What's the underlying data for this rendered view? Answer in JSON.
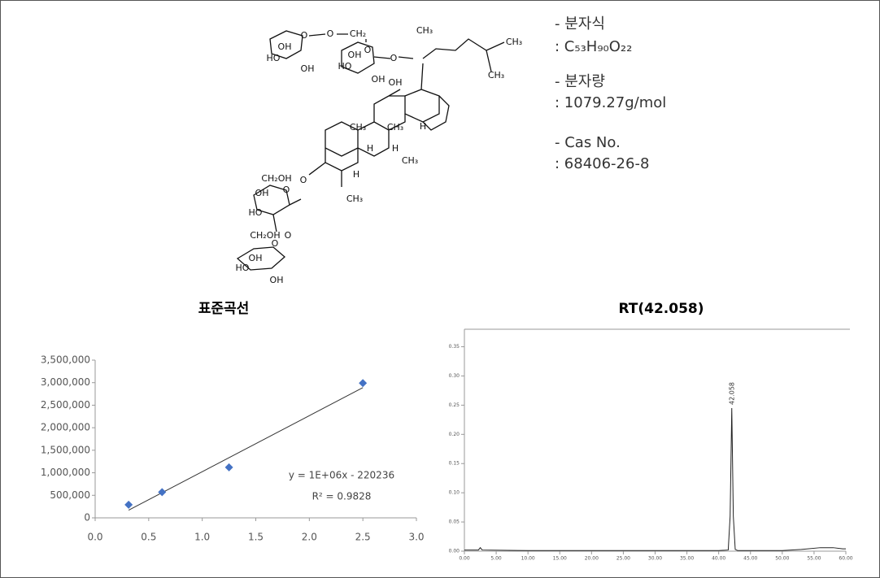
{
  "structure": {
    "labels": [
      "O",
      "O",
      "CH₂",
      "OH",
      "HO",
      "OH",
      "O",
      "OH",
      "HO",
      "OH",
      "O",
      "OH",
      "CH₃",
      "CH₃",
      "CH₃",
      "CH₃",
      "H",
      "CH₃",
      "H",
      "H",
      "CH₃",
      "H",
      "CH₃",
      "O",
      "CH₂OH",
      "O",
      "OH",
      "HO",
      "O",
      "CH₂OH",
      "O",
      "OH",
      "HO",
      "OH"
    ]
  },
  "info": {
    "formula_label": "-   분자식",
    "formula": ": C₅₃H₉₀O₂₂",
    "weight_label": "-   분자량",
    "weight": ": 1079.27g/mol",
    "cas_label": "-   Cas No.",
    "cas": ": 68406-26-8"
  },
  "chart_data": [
    {
      "type": "scatter",
      "title": "표준곡선",
      "color": "#4472c4",
      "x": [
        0.3125,
        0.625,
        1.25,
        2.5
      ],
      "values": [
        290000,
        570000,
        1120000,
        2990000
      ],
      "trendline": {
        "x": [
          0.3125,
          2.5
        ],
        "y": [
          170000,
          2890000
        ]
      },
      "annotations": [
        "y = 1E+06x - 220236",
        "R² = 0.9828"
      ],
      "xlim": [
        0,
        3
      ],
      "xticks": [
        {
          "value": 0,
          "label": "0.0"
        },
        {
          "value": 0.5,
          "label": "0.5"
        },
        {
          "value": 1,
          "label": "1.0"
        },
        {
          "value": 1.5,
          "label": "1.5"
        },
        {
          "value": 2,
          "label": "2.0"
        },
        {
          "value": 2.5,
          "label": "2.5"
        },
        {
          "value": 3,
          "label": "3.0"
        }
      ],
      "ylim": [
        0,
        3500000
      ],
      "yticks": [
        0,
        {
          "value": 500000,
          "label": "500,000"
        },
        {
          "value": 1000000,
          "label": "1,000,000"
        },
        {
          "value": 1500000,
          "label": "1,500,000"
        },
        {
          "value": 2000000,
          "label": "2,000,000"
        },
        {
          "value": 2500000,
          "label": "2,500,000"
        },
        {
          "value": 3000000,
          "label": "3,000,000"
        },
        {
          "value": 3500000,
          "label": "3,500,000"
        }
      ],
      "grid": false
    },
    {
      "type": "line",
      "title": "RT(42.058)",
      "color": "#222222",
      "x": [
        0,
        2.2,
        2.5,
        2.8,
        10,
        20,
        30,
        40,
        41.5,
        41.8,
        42.058,
        42.3,
        42.6,
        43,
        50,
        53,
        56,
        58,
        59.5,
        60
      ],
      "values": [
        0.002,
        0.002,
        0.006,
        0.002,
        0.001,
        0.001,
        0.001,
        0.001,
        0.002,
        0.06,
        0.245,
        0.06,
        0.003,
        0.001,
        0.001,
        0.003,
        0.006,
        0.006,
        0.004,
        0.004
      ],
      "peak_label": "42.058",
      "xlim": [
        0,
        60
      ],
      "xticks": [
        {
          "value": 0,
          "label": "0.00"
        },
        {
          "value": 5,
          "label": "5.00"
        },
        {
          "value": 10,
          "label": "10.00"
        },
        {
          "value": 15,
          "label": "15.00"
        },
        {
          "value": 20,
          "label": "20.00"
        },
        {
          "value": 25,
          "label": "25.00"
        },
        {
          "value": 30,
          "label": "30.00"
        },
        {
          "value": 35,
          "label": "35.00"
        },
        {
          "value": 40,
          "label": "40.00"
        },
        {
          "value": 45,
          "label": "45.00"
        },
        {
          "value": 50,
          "label": "50.00"
        },
        {
          "value": 55,
          "label": "55.00"
        },
        {
          "value": 60,
          "label": "60.00"
        }
      ],
      "ylim": [
        0,
        0.38
      ],
      "yticks": [
        {
          "value": 0,
          "label": "0.00"
        },
        {
          "value": 0.05,
          "label": "0.05"
        },
        {
          "value": 0.1,
          "label": "0.10"
        },
        {
          "value": 0.15,
          "label": "0.15"
        },
        {
          "value": 0.2,
          "label": "0.20"
        },
        {
          "value": 0.25,
          "label": "0.25"
        },
        {
          "value": 0.3,
          "label": "0.30"
        },
        {
          "value": 0.35,
          "label": "0.35"
        }
      ],
      "grid": false
    }
  ]
}
